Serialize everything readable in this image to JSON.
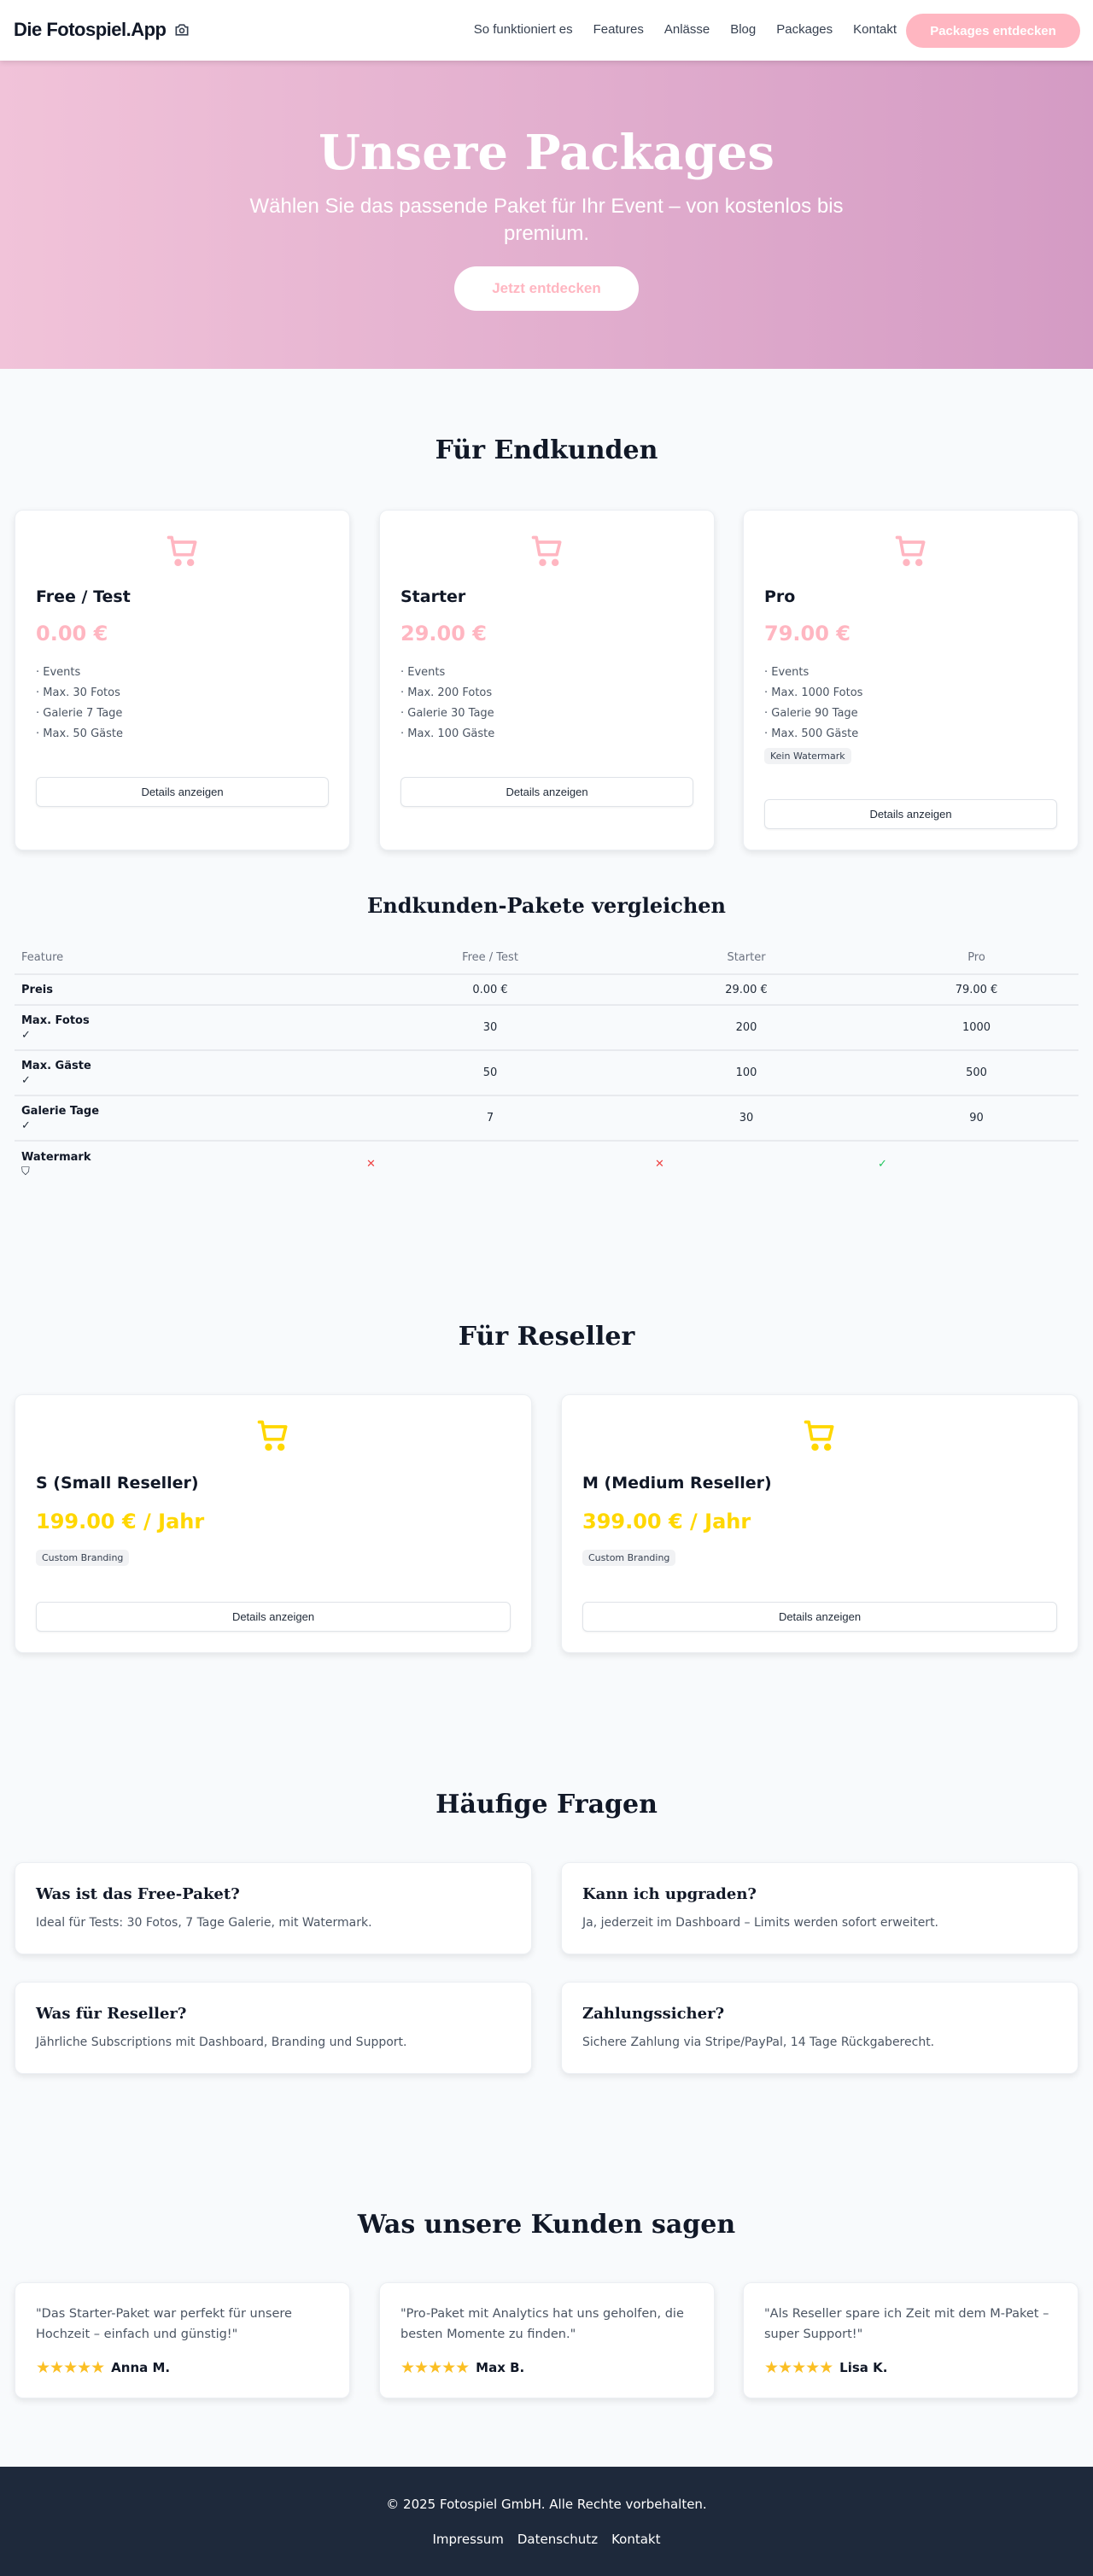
{
  "colors": {
    "accent": "#FFB6C1",
    "reseller": "#FFD700",
    "footer": "#1E293B",
    "hero_from": "#F1C3D9",
    "hero_to": "#D49BC4"
  },
  "nav": {
    "logo": "Die Fotospiel.App",
    "logo_icon": "camera-icon",
    "links": [
      "So funktioniert es",
      "Features",
      "Anlässe",
      "Blog",
      "Packages",
      "Kontakt"
    ],
    "cta": "Packages entdecken"
  },
  "hero": {
    "title": "Unsere Packages",
    "subtitle": "Wählen Sie das passende Paket für Ihr Event – von kostenlos bis premium.",
    "cta": "Jetzt entdecken"
  },
  "endkunden": {
    "heading": "Für Endkunden",
    "details_label": "Details anzeigen",
    "packages": [
      {
        "name": "Free / Test",
        "price": "0.00 €",
        "features": [
          "Events",
          "Max. 30 Fotos",
          "Galerie 7 Tage",
          "Max. 50 Gäste"
        ]
      },
      {
        "name": "Starter",
        "price": "29.00 €",
        "features": [
          "Events",
          "Max. 200 Fotos",
          "Galerie 30 Tage",
          "Max. 100 Gäste"
        ]
      },
      {
        "name": "Pro",
        "price": "79.00 €",
        "features": [
          "Events",
          "Max. 1000 Fotos",
          "Galerie 90 Tage",
          "Max. 500 Gäste"
        ],
        "badge": "Kein Watermark"
      }
    ]
  },
  "compare": {
    "heading": "Endkunden-Pakete vergleichen",
    "columns": [
      "Feature",
      "Free / Test",
      "Starter",
      "Pro"
    ],
    "rows": [
      {
        "feature": "Preis",
        "values": [
          "0.00 €",
          "29.00 €",
          "79.00 €"
        ]
      },
      {
        "feature": "Max. Fotos",
        "icon": "check-icon",
        "values": [
          "30",
          "200",
          "1000"
        ]
      },
      {
        "feature": "Max. Gäste",
        "icon": "check-icon",
        "values": [
          "50",
          "100",
          "500"
        ]
      },
      {
        "feature": "Galerie Tage",
        "icon": "check-icon",
        "values": [
          "7",
          "30",
          "90"
        ]
      },
      {
        "feature": "Watermark",
        "icon": "shield-icon",
        "values": [
          "x",
          "x",
          "check"
        ]
      }
    ]
  },
  "reseller": {
    "heading": "Für Reseller",
    "details_label": "Details anzeigen",
    "packages": [
      {
        "name": "S (Small Reseller)",
        "price": "199.00 € / Jahr",
        "badge": "Custom Branding"
      },
      {
        "name": "M (Medium Reseller)",
        "price": "399.00 € / Jahr",
        "badge": "Custom Branding"
      }
    ]
  },
  "faq": {
    "heading": "Häufige Fragen",
    "items": [
      {
        "q": "Was ist das Free-Paket?",
        "a": "Ideal für Tests: 30 Fotos, 7 Tage Galerie, mit Watermark."
      },
      {
        "q": "Kann ich upgraden?",
        "a": "Ja, jederzeit im Dashboard – Limits werden sofort erweitert."
      },
      {
        "q": "Was für Reseller?",
        "a": "Jährliche Subscriptions mit Dashboard, Branding und Support."
      },
      {
        "q": "Zahlungssicher?",
        "a": "Sichere Zahlung via Stripe/PayPal, 14 Tage Rückgaberecht."
      }
    ]
  },
  "testimonials": {
    "heading": "Was unsere Kunden sagen",
    "items": [
      {
        "quote": "\"Das Starter-Paket war perfekt für unsere Hochzeit – einfach und günstig!\"",
        "name": "Anna M.",
        "rating": 5
      },
      {
        "quote": "\"Pro-Paket mit Analytics hat uns geholfen, die besten Momente zu finden.\"",
        "name": "Max B.",
        "rating": 5
      },
      {
        "quote": "\"Als Reseller spare ich Zeit mit dem M-Paket – super Support!\"",
        "name": "Lisa K.",
        "rating": 5
      }
    ]
  },
  "footer": {
    "copyright": "© 2025 Fotospiel GmbH. Alle Rechte vorbehalten.",
    "links": [
      "Impressum",
      "Datenschutz",
      "Kontakt"
    ]
  }
}
